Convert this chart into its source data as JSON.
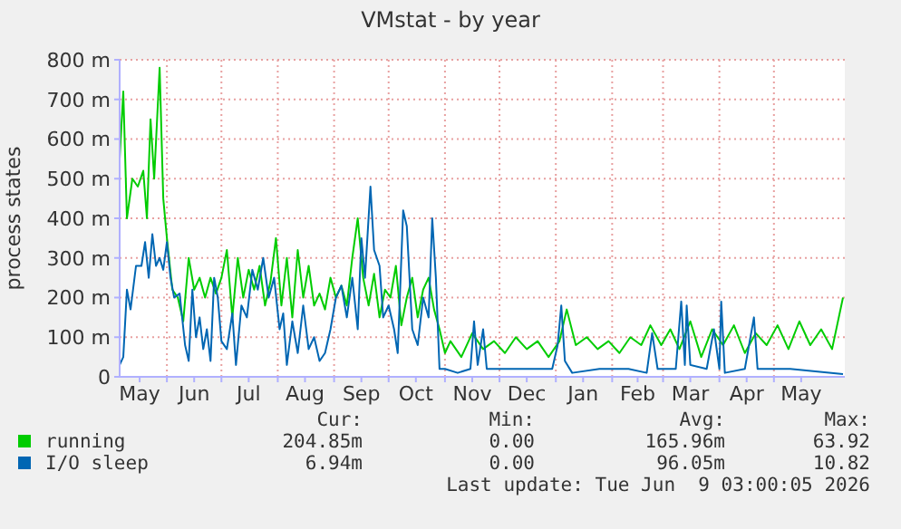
{
  "chart_data": {
    "type": "line",
    "title": "VMstat - by year",
    "ylabel": "process states",
    "xlim": [
      "2025-05-06",
      "2026-06-09"
    ],
    "xticks": [
      {
        "value": "2025-05-17",
        "label": "May"
      },
      {
        "value": "2025-06-01",
        "label": null
      },
      {
        "value": "2025-06-16",
        "label": "Jun"
      },
      {
        "value": "2025-07-01",
        "label": null
      },
      {
        "value": "2025-07-16",
        "label": "Jul"
      },
      {
        "value": "2025-08-01",
        "label": null
      },
      {
        "value": "2025-08-16",
        "label": "Aug"
      },
      {
        "value": "2025-09-01",
        "label": null
      },
      {
        "value": "2025-09-16",
        "label": "Sep"
      },
      {
        "value": "2025-10-01",
        "label": null
      },
      {
        "value": "2025-10-16",
        "label": "Oct"
      },
      {
        "value": "2025-11-01",
        "label": null
      },
      {
        "value": "2025-11-16",
        "label": "Nov"
      },
      {
        "value": "2025-12-01",
        "label": null
      },
      {
        "value": "2025-12-16",
        "label": "Dec"
      },
      {
        "value": "2026-01-01",
        "label": null
      },
      {
        "value": "2026-01-16",
        "label": "Jan"
      },
      {
        "value": "2026-02-01",
        "label": null
      },
      {
        "value": "2026-02-15",
        "label": "Feb"
      },
      {
        "value": "2026-03-01",
        "label": null
      },
      {
        "value": "2026-03-16",
        "label": "Mar"
      },
      {
        "value": "2026-04-01",
        "label": null
      },
      {
        "value": "2026-04-16",
        "label": "Apr"
      },
      {
        "value": "2026-05-01",
        "label": null
      },
      {
        "value": "2026-05-16",
        "label": "May"
      }
    ],
    "ylim": [
      0,
      800
    ],
    "yticks": [
      0,
      {
        "value": 100,
        "label": "100 m"
      },
      {
        "value": 200,
        "label": "200 m"
      },
      {
        "value": 300,
        "label": "300 m"
      },
      {
        "value": 400,
        "label": "400 m"
      },
      {
        "value": 500,
        "label": "500 m"
      },
      {
        "value": 600,
        "label": "600 m"
      },
      {
        "value": 700,
        "label": "700 m"
      },
      {
        "value": 800,
        "label": "800 m"
      }
    ],
    "grid": true,
    "legend": "bottom",
    "marker": "none",
    "line_style": "solid",
    "series": [
      {
        "name": "running",
        "color": "#00cc00",
        "x": [
          "2025-05-06",
          "2025-05-08",
          "2025-05-10",
          "2025-05-13",
          "2025-05-16",
          "2025-05-19",
          "2025-05-21",
          "2025-05-23",
          "2025-05-25",
          "2025-05-28",
          "2025-05-30",
          "2025-06-01",
          "2025-06-04",
          "2025-06-07",
          "2025-06-10",
          "2025-06-13",
          "2025-06-16",
          "2025-06-19",
          "2025-06-22",
          "2025-06-25",
          "2025-06-28",
          "2025-07-01",
          "2025-07-04",
          "2025-07-07",
          "2025-07-10",
          "2025-07-13",
          "2025-07-16",
          "2025-07-19",
          "2025-07-22",
          "2025-07-25",
          "2025-07-28",
          "2025-07-31",
          "2025-08-03",
          "2025-08-06",
          "2025-08-09",
          "2025-08-12",
          "2025-08-15",
          "2025-08-18",
          "2025-08-21",
          "2025-08-24",
          "2025-08-27",
          "2025-08-30",
          "2025-09-02",
          "2025-09-05",
          "2025-09-08",
          "2025-09-11",
          "2025-09-14",
          "2025-09-17",
          "2025-09-20",
          "2025-09-23",
          "2025-09-26",
          "2025-09-29",
          "2025-10-02",
          "2025-10-05",
          "2025-10-08",
          "2025-10-11",
          "2025-10-14",
          "2025-10-17",
          "2025-10-20",
          "2025-10-23",
          "2025-10-26",
          "2025-10-29",
          "2025-11-01",
          "2025-11-04",
          "2025-11-10",
          "2025-11-16",
          "2025-11-22",
          "2025-11-28",
          "2025-12-04",
          "2025-12-10",
          "2025-12-16",
          "2025-12-22",
          "2025-12-28",
          "2026-01-03",
          "2026-01-07",
          "2026-01-12",
          "2026-01-18",
          "2026-01-24",
          "2026-01-30",
          "2026-02-05",
          "2026-02-11",
          "2026-02-17",
          "2026-02-22",
          "2026-02-28",
          "2026-03-05",
          "2026-03-10",
          "2026-03-16",
          "2026-03-22",
          "2026-03-28",
          "2026-04-03",
          "2026-04-09",
          "2026-04-15",
          "2026-04-21",
          "2026-04-27",
          "2026-05-03",
          "2026-05-09",
          "2026-05-15",
          "2026-05-21",
          "2026-05-27",
          "2026-06-02",
          "2026-06-08"
        ],
        "values": [
          550,
          720,
          400,
          500,
          480,
          520,
          400,
          650,
          500,
          780,
          450,
          350,
          220,
          200,
          140,
          300,
          220,
          250,
          200,
          250,
          210,
          250,
          320,
          150,
          300,
          200,
          270,
          220,
          280,
          180,
          240,
          350,
          180,
          300,
          150,
          320,
          200,
          280,
          180,
          210,
          170,
          250,
          200,
          230,
          180,
          300,
          400,
          250,
          180,
          260,
          150,
          220,
          200,
          280,
          130,
          200,
          250,
          150,
          220,
          250,
          170,
          120,
          60,
          90,
          50,
          110,
          70,
          90,
          60,
          100,
          70,
          90,
          50,
          90,
          170,
          80,
          100,
          70,
          90,
          60,
          100,
          80,
          130,
          80,
          120,
          70,
          140,
          50,
          120,
          80,
          130,
          60,
          110,
          80,
          130,
          70,
          140,
          80,
          120,
          70,
          200
        ]
      },
      {
        "name": "I/O sleep",
        "color": "#0066b3",
        "x": [
          "2025-05-06",
          "2025-05-08",
          "2025-05-10",
          "2025-05-12",
          "2025-05-15",
          "2025-05-18",
          "2025-05-20",
          "2025-05-22",
          "2025-05-24",
          "2025-05-26",
          "2025-05-28",
          "2025-05-30",
          "2025-06-01",
          "2025-06-03",
          "2025-06-05",
          "2025-06-08",
          "2025-06-11",
          "2025-06-13",
          "2025-06-15",
          "2025-06-17",
          "2025-06-19",
          "2025-06-21",
          "2025-06-23",
          "2025-06-25",
          "2025-06-27",
          "2025-06-29",
          "2025-07-01",
          "2025-07-04",
          "2025-07-07",
          "2025-07-09",
          "2025-07-12",
          "2025-07-15",
          "2025-07-18",
          "2025-07-21",
          "2025-07-24",
          "2025-07-27",
          "2025-07-30",
          "2025-08-02",
          "2025-08-04",
          "2025-08-06",
          "2025-08-09",
          "2025-08-12",
          "2025-08-15",
          "2025-08-18",
          "2025-08-21",
          "2025-08-24",
          "2025-08-27",
          "2025-08-30",
          "2025-09-02",
          "2025-09-05",
          "2025-09-08",
          "2025-09-11",
          "2025-09-14",
          "2025-09-16",
          "2025-09-18",
          "2025-09-21",
          "2025-09-23",
          "2025-09-26",
          "2025-09-28",
          "2025-10-01",
          "2025-10-04",
          "2025-10-06",
          "2025-10-09",
          "2025-10-11",
          "2025-10-14",
          "2025-10-17",
          "2025-10-20",
          "2025-10-23",
          "2025-10-25",
          "2025-10-27",
          "2025-10-29",
          "2025-11-01",
          "2025-11-08",
          "2025-11-15",
          "2025-11-17",
          "2025-11-19",
          "2025-11-22",
          "2025-11-24",
          "2025-12-05",
          "2025-12-20",
          "2025-12-30",
          "2026-01-02",
          "2026-01-04",
          "2026-01-06",
          "2026-01-10",
          "2026-01-25",
          "2026-02-10",
          "2026-02-20",
          "2026-02-23",
          "2026-02-26",
          "2026-03-08",
          "2026-03-11",
          "2026-03-13",
          "2026-03-14",
          "2026-03-16",
          "2026-03-25",
          "2026-03-29",
          "2026-04-01",
          "2026-04-02",
          "2026-04-04",
          "2026-04-15",
          "2026-04-20",
          "2026-04-22",
          "2026-05-10",
          "2026-06-08"
        ],
        "values": [
          30,
          50,
          220,
          170,
          280,
          280,
          340,
          250,
          360,
          280,
          300,
          270,
          340,
          250,
          200,
          210,
          80,
          40,
          220,
          100,
          150,
          70,
          120,
          40,
          250,
          200,
          90,
          70,
          160,
          30,
          180,
          150,
          270,
          220,
          300,
          200,
          250,
          120,
          160,
          30,
          140,
          60,
          180,
          70,
          100,
          40,
          60,
          120,
          200,
          230,
          150,
          250,
          120,
          350,
          250,
          480,
          320,
          280,
          150,
          180,
          120,
          60,
          420,
          380,
          120,
          80,
          200,
          150,
          400,
          250,
          20,
          20,
          10,
          20,
          140,
          30,
          120,
          20,
          20,
          20,
          20,
          80,
          180,
          40,
          10,
          20,
          20,
          10,
          110,
          20,
          20,
          190,
          30,
          180,
          30,
          20,
          120,
          20,
          190,
          10,
          20,
          150,
          20,
          20,
          7
        ]
      }
    ],
    "annotations": [
      "Cur:",
      "Min:",
      "Avg:",
      "Max:",
      "204.85m",
      "0.00",
      "165.96m",
      "63.92",
      "6.94m",
      "0.00",
      "96.05m",
      "10.82",
      "Last update: Tue Jun  9 03:00:05 2026"
    ]
  }
}
